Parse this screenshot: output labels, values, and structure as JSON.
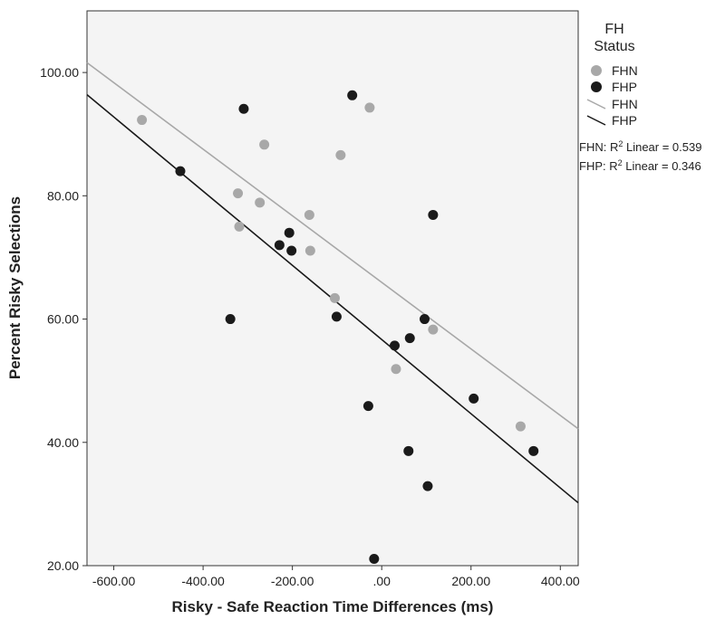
{
  "chart_data": {
    "type": "scatter",
    "xlabel": "Risky - Safe Reaction Time Differences (ms)",
    "ylabel": "Percent Risky Selections",
    "xlim": [
      -660,
      440
    ],
    "ylim": [
      20,
      110
    ],
    "x_ticks": [
      -600,
      -400,
      -200,
      0,
      200,
      400
    ],
    "x_tick_labels": [
      "-600.00",
      "-400.00",
      "-200.00",
      ".00",
      "200.00",
      "400.00"
    ],
    "y_ticks": [
      20,
      40,
      60,
      80,
      100
    ],
    "y_tick_labels": [
      "20.00",
      "40.00",
      "60.00",
      "80.00",
      "100.00"
    ],
    "legend": {
      "title_line1": "FH",
      "title_line2": "Status",
      "marker_labels": [
        "FHN",
        "FHP"
      ],
      "line_labels": [
        "FHN",
        "FHP"
      ]
    },
    "r2_labels": [
      {
        "prefix": "FHN: R",
        "sup": "2",
        "suffix": " Linear = 0.539"
      },
      {
        "prefix": "FHP: R",
        "sup": "2",
        "suffix": " Linear = 0.346"
      }
    ],
    "series": [
      {
        "name": "FHN",
        "color": "#a8a8a8",
        "points": [
          [
            -537,
            92.3
          ],
          [
            -27,
            94.3
          ],
          [
            -263,
            88.3
          ],
          [
            -92,
            86.6
          ],
          [
            -322,
            80.4
          ],
          [
            -273,
            78.9
          ],
          [
            -162,
            76.9
          ],
          [
            -319,
            75.0
          ],
          [
            -160,
            71.1
          ],
          [
            -105,
            63.4
          ],
          [
            115,
            58.3
          ],
          [
            32,
            51.9
          ],
          [
            311,
            42.6
          ]
        ],
        "fit": [
          [
            -660,
            101.6
          ],
          [
            440,
            42.2
          ]
        ]
      },
      {
        "name": "FHP",
        "color": "#1a1a1a",
        "points": [
          [
            -309,
            94.1
          ],
          [
            -66,
            96.3
          ],
          [
            -451,
            84.0
          ],
          [
            115,
            76.9
          ],
          [
            -207,
            74.0
          ],
          [
            -229,
            72.0
          ],
          [
            -202,
            71.1
          ],
          [
            -339,
            60.0
          ],
          [
            -101,
            60.4
          ],
          [
            96,
            60.0
          ],
          [
            63,
            56.9
          ],
          [
            29,
            55.7
          ],
          [
            206,
            47.1
          ],
          [
            -30,
            45.9
          ],
          [
            60,
            38.6
          ],
          [
            340,
            38.6
          ],
          [
            103,
            32.9
          ],
          [
            -17,
            21.1
          ]
        ],
        "fit": [
          [
            -660,
            96.4
          ],
          [
            440,
            30.2
          ]
        ]
      }
    ]
  }
}
